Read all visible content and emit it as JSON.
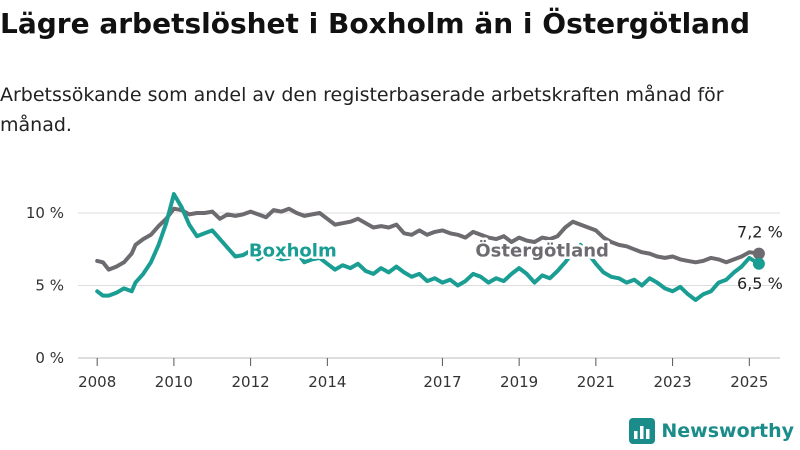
{
  "title": "Lägre arbetslöshet i Boxholm än i Östergötland",
  "subtitle": "Arbetssökande som andel av den registerbaserade arbetskraften månad för månad.",
  "brand": {
    "name": "Newsworthy",
    "icon": "bar-chart-logo-icon"
  },
  "colors": {
    "boxholm": "#1a9e93",
    "ostergotland": "#6d6b70",
    "grid": "#dddddd",
    "axis": "#555555"
  },
  "chart_data": {
    "type": "line",
    "title": "Lägre arbetslöshet i Boxholm än i Östergötland",
    "ylabel": "",
    "xlabel": "",
    "xlim": [
      2007.5,
      2025.8
    ],
    "ylim": [
      0,
      10
    ],
    "y_ticks": [
      0,
      5,
      10
    ],
    "y_tick_labels": [
      "0 %",
      "5 %",
      "10 %"
    ],
    "x_ticks": [
      2008,
      2010,
      2012,
      2014,
      2017,
      2019,
      2021,
      2023,
      2025
    ],
    "x_tick_labels": [
      "2008",
      "2010",
      "2012",
      "2014",
      "2017",
      "2019",
      "2021",
      "2023",
      "2025"
    ],
    "grid": true,
    "series": [
      {
        "name": "Östergötland",
        "end_label": "7,2 %",
        "points": [
          [
            2008.0,
            6.7
          ],
          [
            2008.15,
            6.6
          ],
          [
            2008.3,
            6.1
          ],
          [
            2008.5,
            6.3
          ],
          [
            2008.7,
            6.6
          ],
          [
            2008.9,
            7.2
          ],
          [
            2009.0,
            7.8
          ],
          [
            2009.2,
            8.2
          ],
          [
            2009.4,
            8.5
          ],
          [
            2009.6,
            9.1
          ],
          [
            2009.8,
            9.6
          ],
          [
            2010.0,
            10.3
          ],
          [
            2010.2,
            10.2
          ],
          [
            2010.4,
            9.9
          ],
          [
            2010.6,
            10.0
          ],
          [
            2010.8,
            10.0
          ],
          [
            2011.0,
            10.1
          ],
          [
            2011.2,
            9.6
          ],
          [
            2011.4,
            9.9
          ],
          [
            2011.6,
            9.8
          ],
          [
            2011.8,
            9.9
          ],
          [
            2012.0,
            10.1
          ],
          [
            2012.2,
            9.9
          ],
          [
            2012.4,
            9.7
          ],
          [
            2012.6,
            10.2
          ],
          [
            2012.8,
            10.1
          ],
          [
            2013.0,
            10.3
          ],
          [
            2013.2,
            10.0
          ],
          [
            2013.4,
            9.8
          ],
          [
            2013.6,
            9.9
          ],
          [
            2013.8,
            10.0
          ],
          [
            2014.0,
            9.6
          ],
          [
            2014.2,
            9.2
          ],
          [
            2014.4,
            9.3
          ],
          [
            2014.6,
            9.4
          ],
          [
            2014.8,
            9.6
          ],
          [
            2015.0,
            9.3
          ],
          [
            2015.2,
            9.0
          ],
          [
            2015.4,
            9.1
          ],
          [
            2015.6,
            9.0
          ],
          [
            2015.8,
            9.2
          ],
          [
            2016.0,
            8.6
          ],
          [
            2016.2,
            8.5
          ],
          [
            2016.4,
            8.8
          ],
          [
            2016.6,
            8.5
          ],
          [
            2016.8,
            8.7
          ],
          [
            2017.0,
            8.8
          ],
          [
            2017.2,
            8.6
          ],
          [
            2017.4,
            8.5
          ],
          [
            2017.6,
            8.3
          ],
          [
            2017.8,
            8.7
          ],
          [
            2018.0,
            8.5
          ],
          [
            2018.2,
            8.3
          ],
          [
            2018.4,
            8.2
          ],
          [
            2018.6,
            8.4
          ],
          [
            2018.8,
            8.0
          ],
          [
            2019.0,
            8.3
          ],
          [
            2019.2,
            8.1
          ],
          [
            2019.4,
            8.0
          ],
          [
            2019.6,
            8.3
          ],
          [
            2019.8,
            8.2
          ],
          [
            2020.0,
            8.4
          ],
          [
            2020.2,
            9.0
          ],
          [
            2020.4,
            9.4
          ],
          [
            2020.6,
            9.2
          ],
          [
            2020.8,
            9.0
          ],
          [
            2021.0,
            8.8
          ],
          [
            2021.2,
            8.3
          ],
          [
            2021.4,
            8.0
          ],
          [
            2021.6,
            7.8
          ],
          [
            2021.8,
            7.7
          ],
          [
            2022.0,
            7.5
          ],
          [
            2022.2,
            7.3
          ],
          [
            2022.4,
            7.2
          ],
          [
            2022.6,
            7.0
          ],
          [
            2022.8,
            6.9
          ],
          [
            2023.0,
            7.0
          ],
          [
            2023.2,
            6.8
          ],
          [
            2023.4,
            6.7
          ],
          [
            2023.6,
            6.6
          ],
          [
            2023.8,
            6.7
          ],
          [
            2024.0,
            6.9
          ],
          [
            2024.2,
            6.8
          ],
          [
            2024.4,
            6.6
          ],
          [
            2024.6,
            6.8
          ],
          [
            2024.8,
            7.0
          ],
          [
            2025.0,
            7.3
          ],
          [
            2025.25,
            7.2
          ]
        ]
      },
      {
        "name": "Boxholm",
        "end_label": "6,5 %",
        "points": [
          [
            2008.0,
            4.6
          ],
          [
            2008.15,
            4.3
          ],
          [
            2008.3,
            4.3
          ],
          [
            2008.5,
            4.5
          ],
          [
            2008.7,
            4.8
          ],
          [
            2008.9,
            4.6
          ],
          [
            2009.0,
            5.2
          ],
          [
            2009.2,
            5.8
          ],
          [
            2009.4,
            6.6
          ],
          [
            2009.6,
            7.8
          ],
          [
            2009.8,
            9.3
          ],
          [
            2010.0,
            11.3
          ],
          [
            2010.2,
            10.4
          ],
          [
            2010.4,
            9.2
          ],
          [
            2010.6,
            8.4
          ],
          [
            2010.8,
            8.6
          ],
          [
            2011.0,
            8.8
          ],
          [
            2011.2,
            8.2
          ],
          [
            2011.4,
            7.6
          ],
          [
            2011.6,
            7.0
          ],
          [
            2011.8,
            7.1
          ],
          [
            2012.0,
            7.4
          ],
          [
            2012.2,
            6.8
          ],
          [
            2012.4,
            7.2
          ],
          [
            2012.6,
            7.0
          ],
          [
            2012.8,
            6.8
          ],
          [
            2013.0,
            6.9
          ],
          [
            2013.2,
            7.3
          ],
          [
            2013.4,
            6.6
          ],
          [
            2013.6,
            6.8
          ],
          [
            2013.8,
            6.9
          ],
          [
            2014.0,
            6.5
          ],
          [
            2014.2,
            6.1
          ],
          [
            2014.4,
            6.4
          ],
          [
            2014.6,
            6.2
          ],
          [
            2014.8,
            6.5
          ],
          [
            2015.0,
            6.0
          ],
          [
            2015.2,
            5.8
          ],
          [
            2015.4,
            6.2
          ],
          [
            2015.6,
            5.9
          ],
          [
            2015.8,
            6.3
          ],
          [
            2016.0,
            5.9
          ],
          [
            2016.2,
            5.6
          ],
          [
            2016.4,
            5.8
          ],
          [
            2016.6,
            5.3
          ],
          [
            2016.8,
            5.5
          ],
          [
            2017.0,
            5.2
          ],
          [
            2017.2,
            5.4
          ],
          [
            2017.4,
            5.0
          ],
          [
            2017.6,
            5.3
          ],
          [
            2017.8,
            5.8
          ],
          [
            2018.0,
            5.6
          ],
          [
            2018.2,
            5.2
          ],
          [
            2018.4,
            5.5
          ],
          [
            2018.6,
            5.3
          ],
          [
            2018.8,
            5.8
          ],
          [
            2019.0,
            6.2
          ],
          [
            2019.2,
            5.8
          ],
          [
            2019.4,
            5.2
          ],
          [
            2019.6,
            5.7
          ],
          [
            2019.8,
            5.5
          ],
          [
            2020.0,
            6.0
          ],
          [
            2020.2,
            6.6
          ],
          [
            2020.4,
            7.3
          ],
          [
            2020.6,
            7.8
          ],
          [
            2020.8,
            7.2
          ],
          [
            2021.0,
            6.5
          ],
          [
            2021.2,
            5.9
          ],
          [
            2021.4,
            5.6
          ],
          [
            2021.6,
            5.5
          ],
          [
            2021.8,
            5.2
          ],
          [
            2022.0,
            5.4
          ],
          [
            2022.2,
            5.0
          ],
          [
            2022.4,
            5.5
          ],
          [
            2022.6,
            5.2
          ],
          [
            2022.8,
            4.8
          ],
          [
            2023.0,
            4.6
          ],
          [
            2023.2,
            4.9
          ],
          [
            2023.4,
            4.4
          ],
          [
            2023.6,
            4.0
          ],
          [
            2023.8,
            4.4
          ],
          [
            2024.0,
            4.6
          ],
          [
            2024.2,
            5.2
          ],
          [
            2024.4,
            5.4
          ],
          [
            2024.6,
            5.9
          ],
          [
            2024.8,
            6.3
          ],
          [
            2025.0,
            6.9
          ],
          [
            2025.25,
            6.5
          ]
        ]
      }
    ],
    "labels": [
      {
        "series": "Boxholm",
        "text": "Boxholm",
        "at": [
          2013.1,
          7.5
        ]
      },
      {
        "series": "Östergötland",
        "text": "Östergötland",
        "at": [
          2019.6,
          7.5
        ]
      }
    ]
  }
}
